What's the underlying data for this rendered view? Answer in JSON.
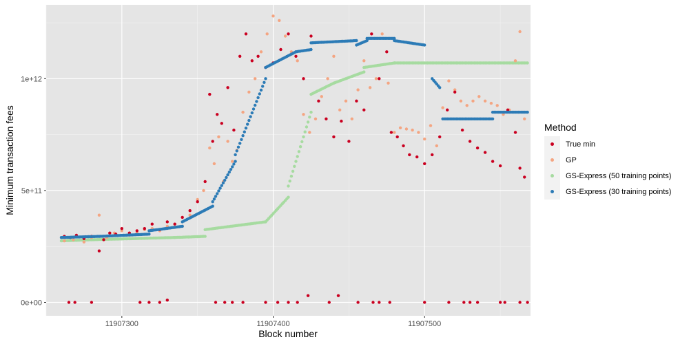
{
  "chart_data": {
    "type": "scatter",
    "xlabel": "Block number",
    "ylabel": "Minimum transaction fees",
    "xlim": [
      11907250,
      11907570
    ],
    "ylim": [
      -60000000000.0,
      1330000000000.0
    ],
    "x_ticks": [
      11907300,
      11907400,
      11907500
    ],
    "x_tick_labels": [
      "11907300",
      "11907400",
      "11907500"
    ],
    "y_ticks": [
      0,
      500000000000,
      1000000000000
    ],
    "y_tick_labels": [
      "0e+00",
      "5e+11",
      "1e+12"
    ],
    "grid": true,
    "background": "#e5e5e5",
    "legend": {
      "title": "Method",
      "position": "right"
    },
    "series": [
      {
        "name": "True min",
        "color": "#ca0020",
        "points": [
          [
            11907262,
            295000000000.0
          ],
          [
            11907266,
            290000000000.0
          ],
          [
            11907270,
            300000000000.0
          ],
          [
            11907275,
            285000000000.0
          ],
          [
            11907280,
            295000000000.0
          ],
          [
            11907285,
            230000000000.0
          ],
          [
            11907288,
            280000000000.0
          ],
          [
            11907292,
            310000000000.0
          ],
          [
            11907296,
            305000000000.0
          ],
          [
            11907300,
            330000000000.0
          ],
          [
            11907305,
            310000000000.0
          ],
          [
            11907310,
            320000000000.0
          ],
          [
            11907315,
            330000000000.0
          ],
          [
            11907320,
            350000000000.0
          ],
          [
            11907325,
            325000000000.0
          ],
          [
            11907330,
            360000000000.0
          ],
          [
            11907335,
            350000000000.0
          ],
          [
            11907340,
            380000000000.0
          ],
          [
            11907345,
            410000000000.0
          ],
          [
            11907350,
            450000000000.0
          ],
          [
            11907355,
            540000000000.0
          ],
          [
            11907358,
            930000000000.0
          ],
          [
            11907360,
            720000000000.0
          ],
          [
            11907363,
            840000000000.0
          ],
          [
            11907366,
            800000000000.0
          ],
          [
            11907370,
            960000000000.0
          ],
          [
            11907374,
            770000000000.0
          ],
          [
            11907378,
            1100000000000.0
          ],
          [
            11907382,
            1200000000000.0
          ],
          [
            11907386,
            1080000000000.0
          ],
          [
            11907390,
            1100000000000.0
          ],
          [
            11907395,
            1050000000000.0
          ],
          [
            11907400,
            1070000000000.0
          ],
          [
            11907405,
            1130000000000.0
          ],
          [
            11907410,
            1200000000000.0
          ],
          [
            11907415,
            1100000000000.0
          ],
          [
            11907420,
            1000000000000.0
          ],
          [
            11907425,
            1190000000000.0
          ],
          [
            11907430,
            900000000000.0
          ],
          [
            11907435,
            820000000000.0
          ],
          [
            11907440,
            740000000000.0
          ],
          [
            11907445,
            810000000000.0
          ],
          [
            11907450,
            720000000000.0
          ],
          [
            11907455,
            900000000000.0
          ],
          [
            11907460,
            860000000000.0
          ],
          [
            11907465,
            1200000000000.0
          ],
          [
            11907470,
            1000000000000.0
          ],
          [
            11907475,
            1120000000000.0
          ],
          [
            11907478,
            760000000000.0
          ],
          [
            11907482,
            740000000000.0
          ],
          [
            11907486,
            700000000000.0
          ],
          [
            11907490,
            660000000000.0
          ],
          [
            11907495,
            650000000000.0
          ],
          [
            11907500,
            620000000000.0
          ],
          [
            11907505,
            660000000000.0
          ],
          [
            11907510,
            740000000000.0
          ],
          [
            11907515,
            860000000000.0
          ],
          [
            11907520,
            940000000000.0
          ],
          [
            11907525,
            770000000000.0
          ],
          [
            11907530,
            720000000000.0
          ],
          [
            11907535,
            690000000000.0
          ],
          [
            11907540,
            670000000000.0
          ],
          [
            11907545,
            630000000000.0
          ],
          [
            11907550,
            610000000000.0
          ],
          [
            11907555,
            860000000000.0
          ],
          [
            11907560,
            760000000000.0
          ],
          [
            11907563,
            600000000000.0
          ],
          [
            11907566,
            560000000000.0
          ],
          [
            11907265,
            0
          ],
          [
            11907269,
            0
          ],
          [
            11907280,
            0
          ],
          [
            11907312,
            0
          ],
          [
            11907318,
            0
          ],
          [
            11907325,
            0
          ],
          [
            11907330,
            10000000000.0
          ],
          [
            11907362,
            0
          ],
          [
            11907368,
            0
          ],
          [
            11907373,
            0
          ],
          [
            11907380,
            0
          ],
          [
            11907395,
            0
          ],
          [
            11907403,
            0
          ],
          [
            11907410,
            0
          ],
          [
            11907416,
            0
          ],
          [
            11907423,
            30000000000.0
          ],
          [
            11907437,
            0
          ],
          [
            11907443,
            30000000000.0
          ],
          [
            11907456,
            0
          ],
          [
            11907466,
            0
          ],
          [
            11907470,
            0
          ],
          [
            11907477,
            0
          ],
          [
            11907500,
            0
          ],
          [
            11907516,
            0
          ],
          [
            11907526,
            0
          ],
          [
            11907530,
            0
          ],
          [
            11907535,
            0
          ],
          [
            11907550,
            0
          ],
          [
            11907553,
            0
          ],
          [
            11907563,
            0
          ],
          [
            11907568,
            0
          ]
        ]
      },
      {
        "name": "GP",
        "color": "#f4a582",
        "points": [
          [
            11907262,
            275000000000.0
          ],
          [
            11907268,
            280000000000.0
          ],
          [
            11907275,
            270000000000.0
          ],
          [
            11907280,
            290000000000.0
          ],
          [
            11907285,
            390000000000.0
          ],
          [
            11907290,
            290000000000.0
          ],
          [
            11907295,
            310000000000.0
          ],
          [
            11907300,
            320000000000.0
          ],
          [
            11907305,
            300000000000.0
          ],
          [
            11907310,
            310000000000.0
          ],
          [
            11907315,
            325000000000.0
          ],
          [
            11907320,
            330000000000.0
          ],
          [
            11907325,
            320000000000.0
          ],
          [
            11907330,
            340000000000.0
          ],
          [
            11907335,
            335000000000.0
          ],
          [
            11907340,
            340000000000.0
          ],
          [
            11907345,
            390000000000.0
          ],
          [
            11907350,
            460000000000.0
          ],
          [
            11907354,
            500000000000.0
          ],
          [
            11907358,
            690000000000.0
          ],
          [
            11907361,
            620000000000.0
          ],
          [
            11907364,
            740000000000.0
          ],
          [
            11907367,
            540000000000.0
          ],
          [
            11907370,
            720000000000.0
          ],
          [
            11907373,
            630000000000.0
          ],
          [
            11907376,
            680000000000.0
          ],
          [
            11907380,
            850000000000.0
          ],
          [
            11907384,
            940000000000.0
          ],
          [
            11907388,
            1000000000000.0
          ],
          [
            11907392,
            1120000000000.0
          ],
          [
            11907396,
            1200000000000.0
          ],
          [
            11907400,
            1280000000000.0
          ],
          [
            11907404,
            1260000000000.0
          ],
          [
            11907408,
            1190000000000.0
          ],
          [
            11907412,
            1120000000000.0
          ],
          [
            11907416,
            1080000000000.0
          ],
          [
            11907420,
            840000000000.0
          ],
          [
            11907424,
            760000000000.0
          ],
          [
            11907428,
            820000000000.0
          ],
          [
            11907432,
            920000000000.0
          ],
          [
            11907436,
            1000000000000.0
          ],
          [
            11907440,
            1100000000000.0
          ],
          [
            11907444,
            860000000000.0
          ],
          [
            11907448,
            900000000000.0
          ],
          [
            11907452,
            820000000000.0
          ],
          [
            11907456,
            950000000000.0
          ],
          [
            11907460,
            1080000000000.0
          ],
          [
            11907464,
            960000000000.0
          ],
          [
            11907468,
            1000000000000.0
          ],
          [
            11907472,
            1200000000000.0
          ],
          [
            11907476,
            980000000000.0
          ],
          [
            11907480,
            760000000000.0
          ],
          [
            11907484,
            780000000000.0
          ],
          [
            11907488,
            775000000000.0
          ],
          [
            11907492,
            770000000000.0
          ],
          [
            11907496,
            760000000000.0
          ],
          [
            11907500,
            730000000000.0
          ],
          [
            11907504,
            790000000000.0
          ],
          [
            11907508,
            700000000000.0
          ],
          [
            11907512,
            870000000000.0
          ],
          [
            11907516,
            990000000000.0
          ],
          [
            11907520,
            950000000000.0
          ],
          [
            11907524,
            900000000000.0
          ],
          [
            11907528,
            880000000000.0
          ],
          [
            11907532,
            900000000000.0
          ],
          [
            11907536,
            920000000000.0
          ],
          [
            11907540,
            900000000000.0
          ],
          [
            11907544,
            890000000000.0
          ],
          [
            11907548,
            880000000000.0
          ],
          [
            11907552,
            840000000000.0
          ],
          [
            11907556,
            860000000000.0
          ],
          [
            11907560,
            1080000000000.0
          ],
          [
            11907563,
            1210000000000.0
          ],
          [
            11907566,
            820000000000.0
          ]
        ]
      },
      {
        "name": "GS-Express (50 training points)",
        "color": "#a6dba0",
        "segments": [
          [
            11907260,
            11907280,
            275000000000.0,
            280000000000.0
          ],
          [
            11907280,
            11907335,
            280000000000.0,
            290000000000.0
          ],
          [
            11907335,
            11907355,
            290000000000.0,
            295000000000.0
          ],
          [
            11907355,
            11907395,
            325000000000.0,
            360000000000.0
          ],
          [
            11907395,
            11907410,
            360000000000.0,
            470000000000.0
          ],
          [
            11907410,
            11907425,
            520000000000.0,
            850000000000.0
          ],
          [
            11907425,
            11907440,
            930000000000.0,
            980000000000.0
          ],
          [
            11907440,
            11907460,
            980000000000.0,
            1030000000000.0
          ],
          [
            11907460,
            11907480,
            1050000000000.0,
            1070000000000.0
          ],
          [
            11907480,
            11907568,
            1070000000000.0,
            1070000000000.0
          ]
        ]
      },
      {
        "name": "GS-Express (30 training points)",
        "color": "#2c7bb6",
        "segments": [
          [
            11907260,
            11907285,
            290000000000.0,
            295000000000.0
          ],
          [
            11907285,
            11907318,
            295000000000.0,
            305000000000.0
          ],
          [
            11907318,
            11907340,
            320000000000.0,
            340000000000.0
          ],
          [
            11907340,
            11907360,
            360000000000.0,
            430000000000.0
          ],
          [
            11907360,
            11907375,
            450000000000.0,
            630000000000.0
          ],
          [
            11907375,
            11907395,
            660000000000.0,
            1000000000000.0
          ],
          [
            11907395,
            11907415,
            1050000000000.0,
            1120000000000.0
          ],
          [
            11907415,
            11907425,
            1120000000000.0,
            1130000000000.0
          ],
          [
            11907425,
            11907455,
            1160000000000.0,
            1170000000000.0
          ],
          [
            11907455,
            11907462,
            1150000000000.0,
            1170000000000.0
          ],
          [
            11907462,
            11907480,
            1180000000000.0,
            1180000000000.0
          ],
          [
            11907480,
            11907500,
            1170000000000.0,
            1150000000000.0
          ],
          [
            11907505,
            11907510,
            1000000000000.0,
            960000000000.0
          ],
          [
            11907512,
            11907545,
            820000000000.0,
            820000000000.0
          ],
          [
            11907545,
            11907568,
            850000000000.0,
            850000000000.0
          ]
        ]
      }
    ]
  }
}
